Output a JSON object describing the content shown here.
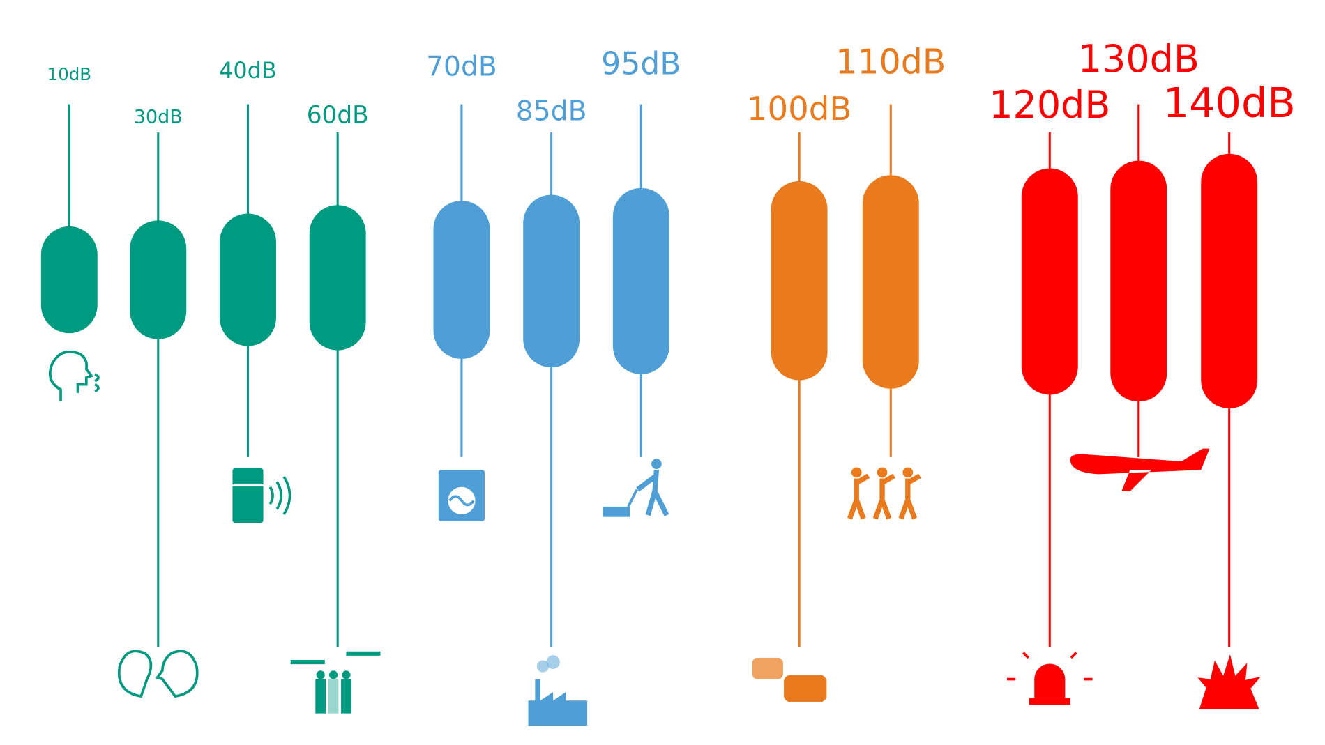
{
  "items": [
    {
      "label": "10dB"
    },
    {
      "label": "30dB"
    },
    {
      "label": "40dB"
    },
    {
      "label": "60dB"
    },
    {
      "label": "70dB"
    },
    {
      "label": "85dB"
    },
    {
      "label": "95dB"
    },
    {
      "label": "100dB"
    },
    {
      "label": "110dB"
    },
    {
      "label": "120dB"
    },
    {
      "label": "130dB"
    },
    {
      "label": "140dB"
    }
  ]
}
